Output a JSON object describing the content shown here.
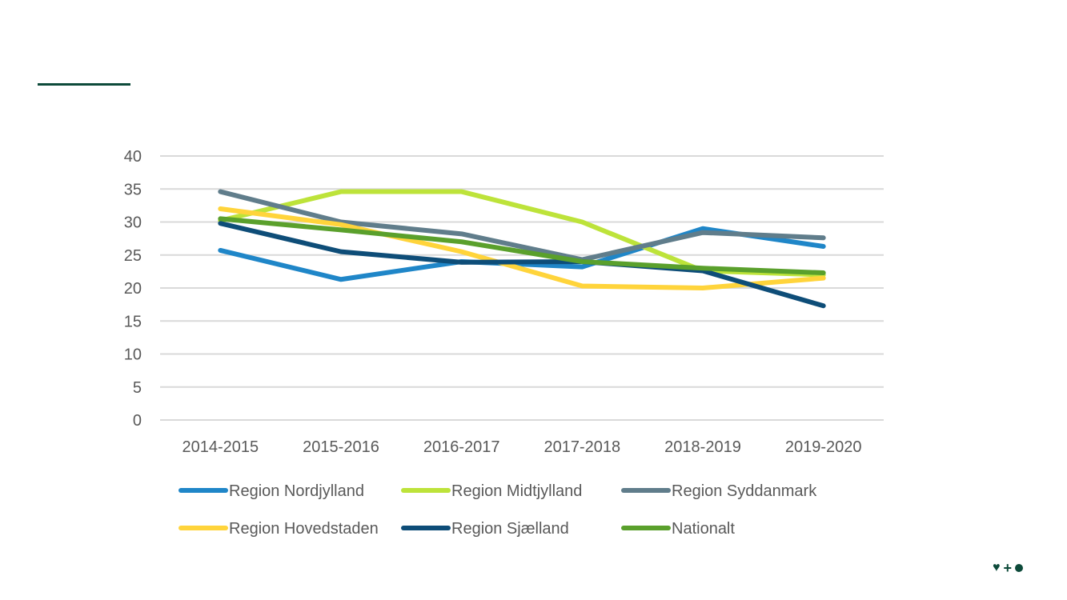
{
  "chart_data": {
    "type": "line",
    "title": "",
    "xlabel": "",
    "ylabel": "",
    "categories": [
      "2014-2015",
      "2015-2016",
      "2016-2017",
      "2017-2018",
      "2018-2019",
      "2019-2020"
    ],
    "ylim": [
      0,
      40
    ],
    "yticks": [
      0,
      5,
      10,
      15,
      20,
      25,
      30,
      35,
      40
    ],
    "grid": true,
    "legend_position": "bottom",
    "series": [
      {
        "name": "Region Nordjylland",
        "color": "#1f86c8",
        "values": [
          25.7,
          21.3,
          24.0,
          23.2,
          29.0,
          26.3
        ]
      },
      {
        "name": "Region Midtjylland",
        "color": "#bde33a",
        "values": [
          30.2,
          34.6,
          34.6,
          30.0,
          22.6,
          22.0
        ]
      },
      {
        "name": "Region Syddanmark",
        "color": "#607d8b",
        "values": [
          34.6,
          30.0,
          28.2,
          24.3,
          28.4,
          27.6
        ]
      },
      {
        "name": "Region Hovedstaden",
        "color": "#ffd43b",
        "values": [
          32.0,
          29.6,
          25.5,
          20.3,
          20.0,
          21.5
        ]
      },
      {
        "name": "Region Sjælland",
        "color": "#0e4d78",
        "values": [
          29.8,
          25.5,
          23.9,
          24.0,
          22.6,
          17.3
        ]
      },
      {
        "name": "Nationalt",
        "color": "#5aa02c",
        "values": [
          30.5,
          28.8,
          27.0,
          24.0,
          23.0,
          22.3
        ]
      }
    ]
  }
}
